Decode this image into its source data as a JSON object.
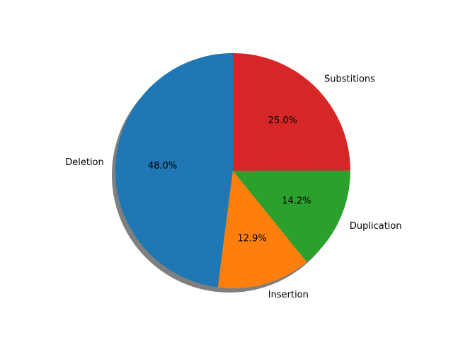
{
  "chart_data": {
    "type": "pie",
    "title": "",
    "categories": [
      "Deletion",
      "Insertion",
      "Duplication",
      "Substitions"
    ],
    "values": [
      48.0,
      12.9,
      14.2,
      25.0
    ],
    "percent_labels": [
      "48.0%",
      "12.9%",
      "14.2%",
      "25.0%"
    ],
    "colors": [
      "#1f77b4",
      "#ff7f0e",
      "#2ca02c",
      "#d62728"
    ],
    "start_angle_deg": 90,
    "direction": "counterclockwise",
    "shadow": true,
    "legend": "none"
  }
}
